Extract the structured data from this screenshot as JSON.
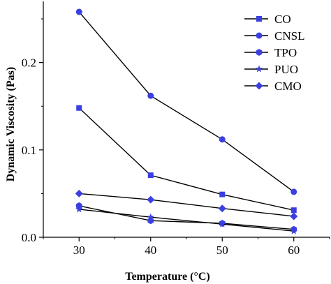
{
  "chart_data": {
    "type": "line",
    "title": "",
    "xlabel": "Temperature (°C)",
    "ylabel": "Dynamic Viscosity (Pas)",
    "x": [
      30,
      40,
      50,
      60
    ],
    "xlim": [
      25,
      65
    ],
    "ylim": [
      0,
      0.27
    ],
    "xticks": [
      "30",
      "40",
      "50",
      "60"
    ],
    "yticks": [
      "0.0",
      "0.1",
      "0.2"
    ],
    "grid": false,
    "legend_position": "top-right",
    "line_color": "#000000",
    "marker_color": "#3a3fe0",
    "series": [
      {
        "name": "CO",
        "marker": "square",
        "values": [
          0.148,
          0.071,
          0.049,
          0.031
        ]
      },
      {
        "name": "CNSL",
        "marker": "circle",
        "values": [
          0.258,
          0.162,
          0.112,
          0.052
        ]
      },
      {
        "name": "TPO",
        "marker": "hexagon",
        "values": [
          0.036,
          0.019,
          0.016,
          0.009
        ]
      },
      {
        "name": "PUO",
        "marker": "star",
        "values": [
          0.032,
          0.023,
          0.015,
          0.007
        ]
      },
      {
        "name": "CMO",
        "marker": "diamond",
        "values": [
          0.05,
          0.043,
          0.033,
          0.024
        ]
      }
    ]
  }
}
